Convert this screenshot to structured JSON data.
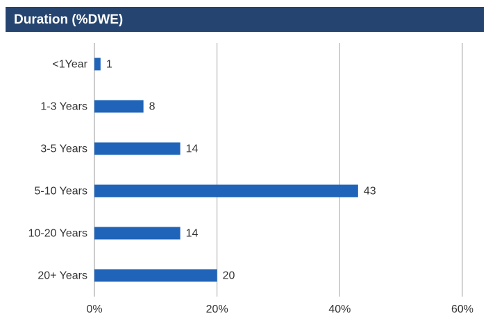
{
  "chart_data": {
    "type": "bar",
    "orientation": "horizontal",
    "title": "Duration (%DWE)",
    "categories": [
      "<1Year",
      "1-3 Years",
      "3-5 Years",
      "5-10 Years",
      "10-20 Years",
      "20+ Years"
    ],
    "values": [
      1,
      8,
      14,
      43,
      14,
      20
    ],
    "color": "#1f64b8",
    "xlim": [
      0,
      60
    ],
    "xticks": [
      {
        "value": 0,
        "label": "0%"
      },
      {
        "value": 20,
        "label": "20%"
      },
      {
        "value": 40,
        "label": "40%"
      },
      {
        "value": 60,
        "label": "60%"
      }
    ],
    "grid": true
  }
}
